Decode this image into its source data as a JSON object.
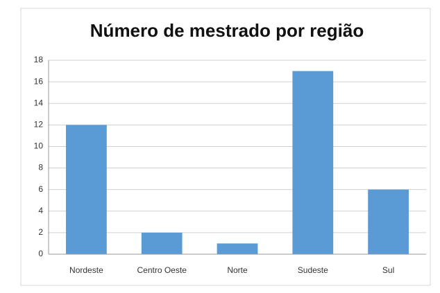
{
  "chart_data": {
    "type": "bar",
    "title": "Número de mestrado por região",
    "categories": [
      "Nordeste",
      "Centro Oeste",
      "Norte",
      "Sudeste",
      "Sul"
    ],
    "values": [
      12,
      2,
      1,
      17,
      6
    ],
    "color": "#5b9bd5",
    "ylim": [
      0,
      18
    ],
    "yticks": [
      0,
      2,
      4,
      6,
      8,
      10,
      12,
      14,
      16,
      18
    ],
    "grid": true
  }
}
